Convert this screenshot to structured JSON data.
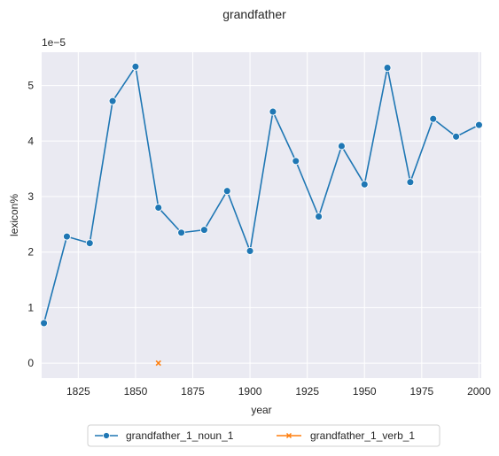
{
  "chart_data": {
    "type": "line",
    "title": "grandfather",
    "xlabel": "year",
    "ylabel": "lexicon%",
    "y_scale_label": "1e−5",
    "xlim": [
      1809,
      2001
    ],
    "ylim": [
      -0.27,
      5.6
    ],
    "x_ticks": [
      1825,
      1850,
      1875,
      1900,
      1925,
      1950,
      1975,
      2000
    ],
    "y_ticks": [
      0,
      1,
      2,
      3,
      4,
      5
    ],
    "grid": true,
    "legend_position": "bottom-center",
    "series": [
      {
        "name": "grandfather_1_noun_1",
        "color": "#1f77b4",
        "marker": "circle",
        "x": [
          1810,
          1820,
          1830,
          1840,
          1850,
          1860,
          1870,
          1880,
          1890,
          1900,
          1910,
          1920,
          1930,
          1940,
          1950,
          1960,
          1970,
          1980,
          1990,
          2000
        ],
        "y": [
          0.72,
          2.28,
          2.16,
          4.72,
          5.34,
          2.8,
          2.35,
          2.4,
          3.1,
          2.02,
          4.53,
          3.64,
          2.64,
          3.91,
          3.22,
          5.32,
          3.26,
          4.4,
          4.08,
          4.29
        ]
      },
      {
        "name": "grandfather_1_verb_1",
        "color": "#ff7f0e",
        "marker": "x",
        "x": [
          1860
        ],
        "y": [
          0.0
        ]
      }
    ]
  }
}
